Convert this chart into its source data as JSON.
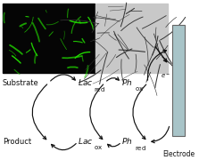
{
  "fig_width": 2.23,
  "fig_height": 1.89,
  "dpi": 100,
  "background": "#ffffff",
  "substrate_label": "Substrate",
  "product_label": "Product",
  "electrode_label": "Electrode",
  "electrode_color": "#a8c4c8",
  "electrode_edge_color": "#666666",
  "arrow_color": "#111111",
  "text_color": "#111111",
  "nanofiber_color": "#333333",
  "green_fiber_color": "#22dd00",
  "left_img_bg": "#050505",
  "right_img_bg": "#c8c8c8"
}
